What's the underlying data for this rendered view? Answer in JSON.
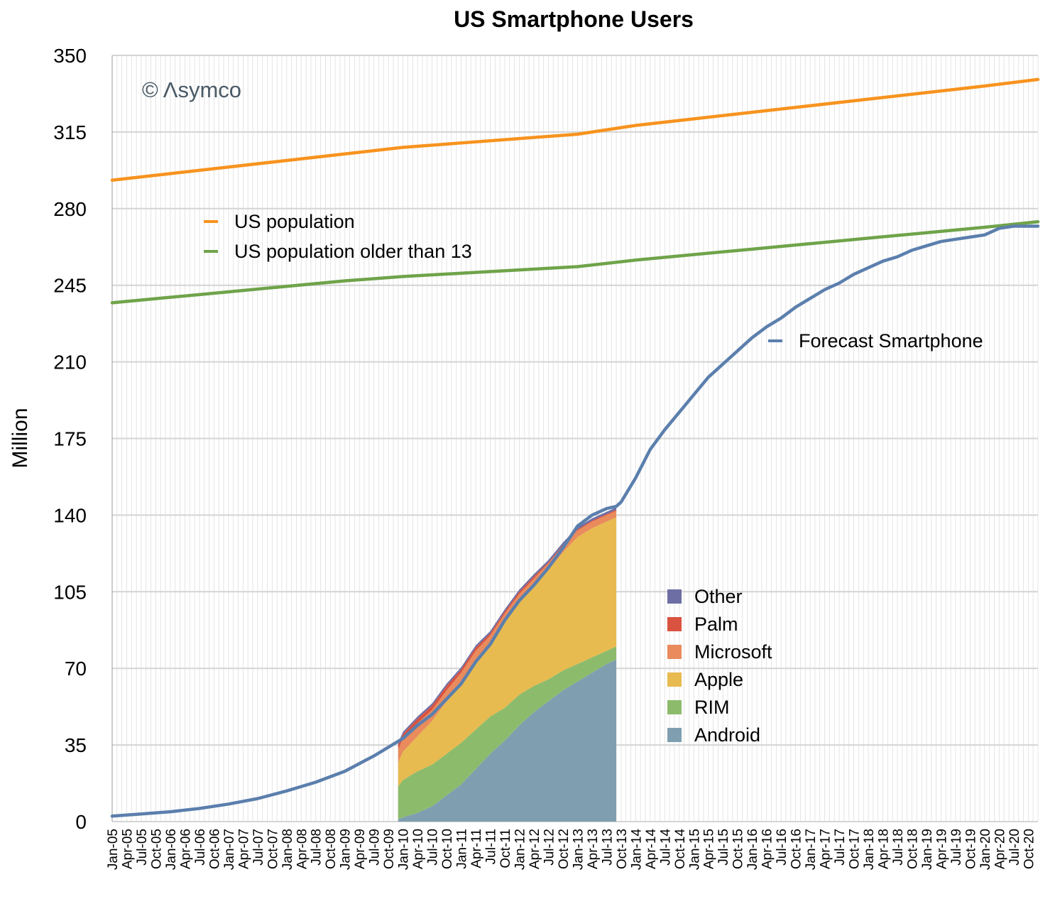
{
  "chart_data": {
    "type": "area",
    "title": "US Smartphone Users",
    "ylabel": "Million",
    "xlabel": "",
    "ylim": [
      0,
      350
    ],
    "yticks": [
      0,
      35,
      70,
      105,
      140,
      175,
      210,
      245,
      280,
      315,
      350
    ],
    "grid": true,
    "watermark": "© Λsymco",
    "x_tick_labels": [
      "Jan-05",
      "Apr-05",
      "Jul-05",
      "Oct-05",
      "Jan-06",
      "Apr-06",
      "Jul-06",
      "Oct-06",
      "Jan-07",
      "Apr-07",
      "Jul-07",
      "Oct-07",
      "Jan-08",
      "Apr-08",
      "Jul-08",
      "Oct-08",
      "Jan-09",
      "Apr-09",
      "Jul-09",
      "Oct-09",
      "Jan-10",
      "Apr-10",
      "Jul-10",
      "Oct-10",
      "Jan-11",
      "Apr-11",
      "Jul-11",
      "Oct-11",
      "Jan-12",
      "Apr-12",
      "Jul-12",
      "Oct-12",
      "Jan-13",
      "Apr-13",
      "Jul-13",
      "Oct-13",
      "Jan-14",
      "Apr-14",
      "Jul-14",
      "Oct-14",
      "Jan-15",
      "Apr-15",
      "Jul-15",
      "Oct-15",
      "Jan-16",
      "Apr-16",
      "Jul-16",
      "Oct-16",
      "Jan-17",
      "Apr-17",
      "Jul-17",
      "Oct-17",
      "Jan-18",
      "Apr-18",
      "Jul-18",
      "Oct-18",
      "Jan-19",
      "Apr-19",
      "Jul-19",
      "Oct-19",
      "Jan-20",
      "Apr-20",
      "Jul-20",
      "Oct-20"
    ],
    "line_series": [
      {
        "name": "US population",
        "color": "#f7931e",
        "x": [
          "Jan-05",
          "Jan-06",
          "Jan-07",
          "Jan-08",
          "Jan-09",
          "Jan-10",
          "Jan-11",
          "Jan-12",
          "Jan-13",
          "Jan-14",
          "Jan-15",
          "Jan-16",
          "Jan-17",
          "Jan-18",
          "Jan-19",
          "Jan-20",
          "Dec-20"
        ],
        "values": [
          293,
          296,
          299,
          302,
          305,
          308,
          310,
          312,
          314,
          318,
          321,
          324,
          327,
          330,
          333,
          336,
          339
        ]
      },
      {
        "name": "US population older than 13",
        "color": "#6fa34a",
        "x": [
          "Jan-05",
          "Jan-06",
          "Jan-07",
          "Jan-08",
          "Jan-09",
          "Jan-10",
          "Jan-11",
          "Jan-12",
          "Jan-13",
          "Jan-14",
          "Jan-15",
          "Jan-16",
          "Jan-17",
          "Jan-18",
          "Jan-19",
          "Jan-20",
          "Dec-20"
        ],
        "values": [
          237,
          239.5,
          242,
          244.5,
          247,
          249,
          250.5,
          252,
          253.5,
          256.5,
          259,
          261.5,
          264,
          266.5,
          269,
          271.5,
          274
        ]
      },
      {
        "name": "Forecast Smartphone",
        "color": "#5b7fad",
        "x": [
          "Jan-05",
          "Jul-05",
          "Jan-06",
          "Jul-06",
          "Jan-07",
          "Jul-07",
          "Jan-08",
          "Jul-08",
          "Jan-09",
          "Jul-09",
          "Oct-09",
          "Jan-10",
          "Apr-10",
          "Jul-10",
          "Oct-10",
          "Jan-11",
          "Apr-11",
          "Jul-11",
          "Oct-11",
          "Jan-12",
          "Apr-12",
          "Jul-12",
          "Oct-12",
          "Jan-13",
          "Apr-13",
          "Jul-13",
          "Sep-13",
          "Oct-13",
          "Jan-14",
          "Apr-14",
          "Jul-14",
          "Oct-14",
          "Jan-15",
          "Apr-15",
          "Jul-15",
          "Oct-15",
          "Jan-16",
          "Apr-16",
          "Jul-16",
          "Oct-16",
          "Jan-17",
          "Apr-17",
          "Jul-17",
          "Oct-17",
          "Jan-18",
          "Apr-18",
          "Jul-18",
          "Oct-18",
          "Jan-19",
          "Apr-19",
          "Jul-19",
          "Oct-19",
          "Jan-20",
          "Apr-20",
          "Jul-20",
          "Oct-20",
          "Dec-20"
        ],
        "values": [
          2.5,
          3.5,
          4.5,
          6,
          8,
          10.5,
          14,
          18,
          23,
          30,
          34,
          38,
          44,
          49,
          56,
          63,
          73,
          81,
          92,
          101,
          108,
          116,
          125,
          135,
          140,
          143,
          144,
          146,
          157,
          170,
          179,
          187,
          195,
          203,
          209,
          215,
          221,
          226,
          230,
          235,
          239,
          243,
          246,
          250,
          253,
          256,
          258,
          261,
          263,
          265,
          266,
          267,
          268,
          271,
          272,
          272,
          272
        ]
      }
    ],
    "stacked_series": {
      "x": [
        "Dec-09",
        "Jan-10",
        "Apr-10",
        "Jul-10",
        "Oct-10",
        "Jan-11",
        "Apr-11",
        "Jul-11",
        "Oct-11",
        "Jan-12",
        "Apr-12",
        "Jul-12",
        "Oct-12",
        "Jan-13",
        "Apr-13",
        "Jul-13",
        "Sep-13"
      ],
      "series": [
        {
          "name": "Android",
          "color": "#7f9fb0",
          "values": [
            1,
            2,
            4,
            7,
            12,
            17,
            24,
            31,
            37,
            44,
            50,
            55,
            60,
            64,
            68,
            72,
            74
          ]
        },
        {
          "name": "RIM",
          "color": "#8dbb6c",
          "values": [
            15,
            17,
            19,
            19,
            19,
            19,
            18,
            17,
            15,
            14,
            12,
            10,
            9,
            8,
            7,
            6,
            6
          ]
        },
        {
          "name": "Apple",
          "color": "#e7bb50",
          "values": [
            11,
            13,
            16,
            20,
            24,
            28,
            32,
            34,
            40,
            43,
            46,
            50,
            54,
            58,
            59,
            59,
            59
          ]
        },
        {
          "name": "Microsoft",
          "color": "#e98b5c",
          "values": [
            6,
            6,
            6,
            5,
            5,
            4,
            4,
            3,
            3,
            3,
            3,
            3,
            3,
            3,
            3,
            3,
            3
          ]
        },
        {
          "name": "Palm",
          "color": "#d95340",
          "values": [
            2,
            2,
            2,
            2,
            2,
            1.5,
            1.5,
            1,
            1,
            1,
            1,
            0.5,
            0.5,
            0.5,
            0.5,
            0.5,
            0.5
          ]
        },
        {
          "name": "Other",
          "color": "#6c6ea4",
          "values": [
            1,
            1,
            1,
            1,
            1,
            1,
            1,
            1,
            1,
            1,
            1,
            1,
            1,
            1,
            1,
            1,
            1
          ]
        }
      ]
    }
  }
}
